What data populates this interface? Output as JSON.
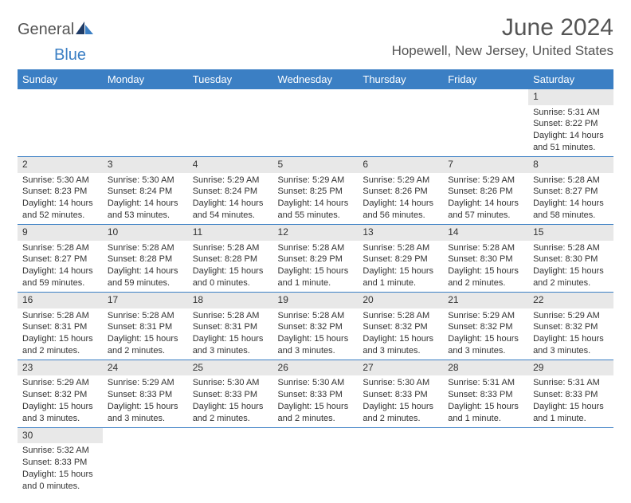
{
  "logo": {
    "text1": "General",
    "text2": "Blue"
  },
  "title": "June 2024",
  "location": "Hopewell, New Jersey, United States",
  "colors": {
    "headerBg": "#3b7fc4",
    "headerText": "#ffffff",
    "dayNumBg": "#e8e8e8",
    "rowBorder": "#3b7fc4"
  },
  "dayHeaders": [
    "Sunday",
    "Monday",
    "Tuesday",
    "Wednesday",
    "Thursday",
    "Friday",
    "Saturday"
  ],
  "weeks": [
    [
      null,
      null,
      null,
      null,
      null,
      null,
      {
        "n": "1",
        "sr": "5:31 AM",
        "ss": "8:22 PM",
        "dl": "14 hours and 51 minutes."
      }
    ],
    [
      {
        "n": "2",
        "sr": "5:30 AM",
        "ss": "8:23 PM",
        "dl": "14 hours and 52 minutes."
      },
      {
        "n": "3",
        "sr": "5:30 AM",
        "ss": "8:24 PM",
        "dl": "14 hours and 53 minutes."
      },
      {
        "n": "4",
        "sr": "5:29 AM",
        "ss": "8:24 PM",
        "dl": "14 hours and 54 minutes."
      },
      {
        "n": "5",
        "sr": "5:29 AM",
        "ss": "8:25 PM",
        "dl": "14 hours and 55 minutes."
      },
      {
        "n": "6",
        "sr": "5:29 AM",
        "ss": "8:26 PM",
        "dl": "14 hours and 56 minutes."
      },
      {
        "n": "7",
        "sr": "5:29 AM",
        "ss": "8:26 PM",
        "dl": "14 hours and 57 minutes."
      },
      {
        "n": "8",
        "sr": "5:28 AM",
        "ss": "8:27 PM",
        "dl": "14 hours and 58 minutes."
      }
    ],
    [
      {
        "n": "9",
        "sr": "5:28 AM",
        "ss": "8:27 PM",
        "dl": "14 hours and 59 minutes."
      },
      {
        "n": "10",
        "sr": "5:28 AM",
        "ss": "8:28 PM",
        "dl": "14 hours and 59 minutes."
      },
      {
        "n": "11",
        "sr": "5:28 AM",
        "ss": "8:28 PM",
        "dl": "15 hours and 0 minutes."
      },
      {
        "n": "12",
        "sr": "5:28 AM",
        "ss": "8:29 PM",
        "dl": "15 hours and 1 minute."
      },
      {
        "n": "13",
        "sr": "5:28 AM",
        "ss": "8:29 PM",
        "dl": "15 hours and 1 minute."
      },
      {
        "n": "14",
        "sr": "5:28 AM",
        "ss": "8:30 PM",
        "dl": "15 hours and 2 minutes."
      },
      {
        "n": "15",
        "sr": "5:28 AM",
        "ss": "8:30 PM",
        "dl": "15 hours and 2 minutes."
      }
    ],
    [
      {
        "n": "16",
        "sr": "5:28 AM",
        "ss": "8:31 PM",
        "dl": "15 hours and 2 minutes."
      },
      {
        "n": "17",
        "sr": "5:28 AM",
        "ss": "8:31 PM",
        "dl": "15 hours and 2 minutes."
      },
      {
        "n": "18",
        "sr": "5:28 AM",
        "ss": "8:31 PM",
        "dl": "15 hours and 3 minutes."
      },
      {
        "n": "19",
        "sr": "5:28 AM",
        "ss": "8:32 PM",
        "dl": "15 hours and 3 minutes."
      },
      {
        "n": "20",
        "sr": "5:28 AM",
        "ss": "8:32 PM",
        "dl": "15 hours and 3 minutes."
      },
      {
        "n": "21",
        "sr": "5:29 AM",
        "ss": "8:32 PM",
        "dl": "15 hours and 3 minutes."
      },
      {
        "n": "22",
        "sr": "5:29 AM",
        "ss": "8:32 PM",
        "dl": "15 hours and 3 minutes."
      }
    ],
    [
      {
        "n": "23",
        "sr": "5:29 AM",
        "ss": "8:32 PM",
        "dl": "15 hours and 3 minutes."
      },
      {
        "n": "24",
        "sr": "5:29 AM",
        "ss": "8:33 PM",
        "dl": "15 hours and 3 minutes."
      },
      {
        "n": "25",
        "sr": "5:30 AM",
        "ss": "8:33 PM",
        "dl": "15 hours and 2 minutes."
      },
      {
        "n": "26",
        "sr": "5:30 AM",
        "ss": "8:33 PM",
        "dl": "15 hours and 2 minutes."
      },
      {
        "n": "27",
        "sr": "5:30 AM",
        "ss": "8:33 PM",
        "dl": "15 hours and 2 minutes."
      },
      {
        "n": "28",
        "sr": "5:31 AM",
        "ss": "8:33 PM",
        "dl": "15 hours and 1 minute."
      },
      {
        "n": "29",
        "sr": "5:31 AM",
        "ss": "8:33 PM",
        "dl": "15 hours and 1 minute."
      }
    ],
    [
      {
        "n": "30",
        "sr": "5:32 AM",
        "ss": "8:33 PM",
        "dl": "15 hours and 0 minutes."
      },
      null,
      null,
      null,
      null,
      null,
      null
    ]
  ],
  "labels": {
    "sunrise": "Sunrise: ",
    "sunset": "Sunset: ",
    "daylight": "Daylight: "
  }
}
